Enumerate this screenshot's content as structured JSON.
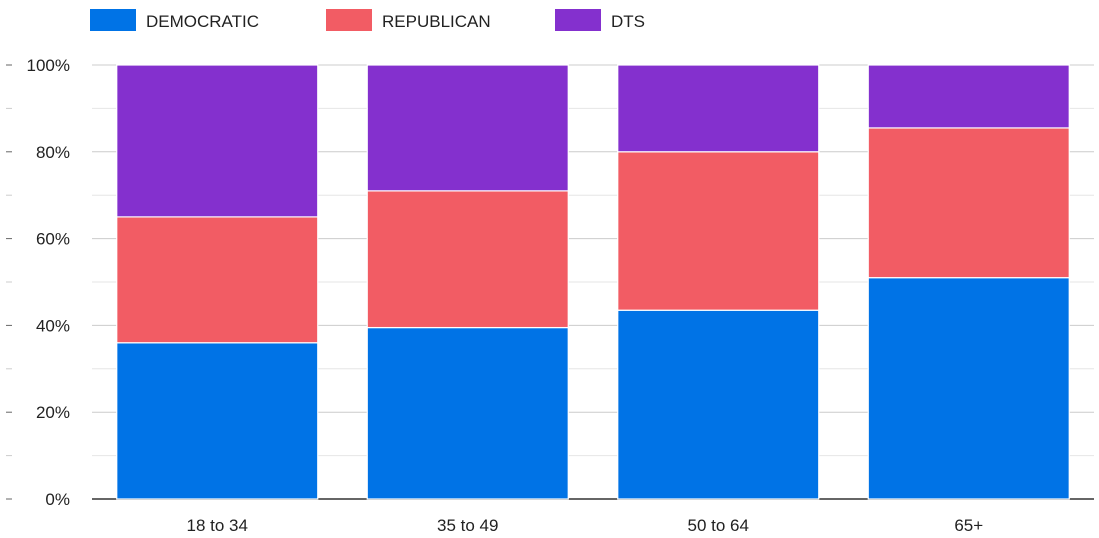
{
  "chart_data": {
    "type": "bar",
    "stacked": true,
    "normalized": true,
    "categories": [
      "18 to 34",
      "35 to 49",
      "50 to 64",
      "65+"
    ],
    "series": [
      {
        "name": "DEMOCRATIC",
        "color": "#0073E6",
        "values": [
          36,
          39.5,
          43.5,
          51
        ]
      },
      {
        "name": "REPUBLICAN",
        "color": "#F25C64",
        "values": [
          29,
          31.5,
          36.5,
          34.5
        ]
      },
      {
        "name": "DTS",
        "color": "#8430CE",
        "values": [
          35,
          29,
          20,
          14.5
        ]
      }
    ],
    "y_ticks": [
      "0%",
      "20%",
      "40%",
      "60%",
      "80%",
      "100%"
    ],
    "ylim": [
      0,
      100
    ],
    "grid": true,
    "legend": "top-left",
    "title": "",
    "xlabel": "",
    "ylabel": ""
  }
}
